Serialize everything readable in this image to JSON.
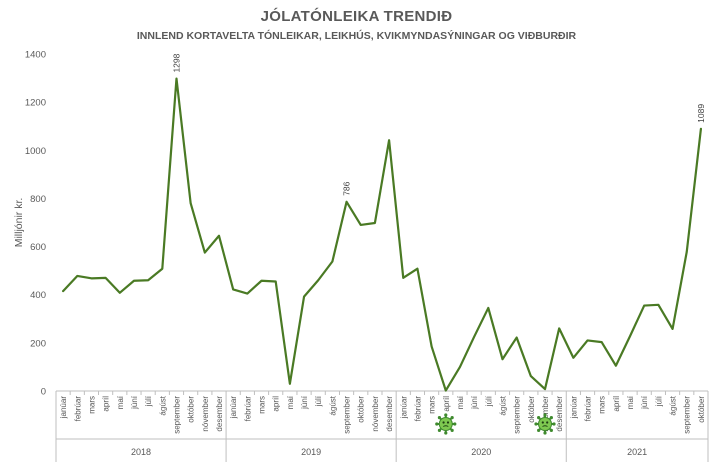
{
  "chart_data": {
    "type": "line",
    "title": "JÓLATÓNLEIKA TRENDIÐ",
    "subtitle": "INNLEND KORTAVELTA TÓNLEIKAR, LEIKHÚS, KVIKMYNDASÝNINGAR OG VIÐBURÐIR",
    "ylabel": "Milljónir kr.",
    "ylim": [
      0,
      1400
    ],
    "yticks": [
      0,
      200,
      400,
      600,
      800,
      1000,
      1200,
      1400
    ],
    "grid": false,
    "line_color": "#4a7a24",
    "groups": [
      {
        "year": "2018",
        "months": [
          "janúar",
          "febrúar",
          "mars",
          "apríl",
          "maí",
          "júní",
          "júlí",
          "ágúst",
          "september",
          "október",
          "nóvember",
          "desember"
        ]
      },
      {
        "year": "2019",
        "months": [
          "janúar",
          "febrúar",
          "mars",
          "apríl",
          "maí",
          "júní",
          "júlí",
          "ágúst",
          "september",
          "október",
          "nóvember",
          "desember"
        ]
      },
      {
        "year": "2020",
        "months": [
          "janúar",
          "febrúar",
          "mars",
          "apríl",
          "maí",
          "júní",
          "júlí",
          "ágúst",
          "september",
          "október",
          "nóvember",
          "desember"
        ]
      },
      {
        "year": "2021",
        "months": [
          "janúar",
          "febrúar",
          "mars",
          "apríl",
          "maí",
          "júní",
          "júlí",
          "ágúst",
          "september",
          "október"
        ]
      }
    ],
    "values": [
      415,
      478,
      468,
      470,
      408,
      458,
      460,
      508,
      1298,
      780,
      575,
      645,
      422,
      405,
      458,
      455,
      30,
      392,
      460,
      538,
      786,
      690,
      698,
      1042,
      470,
      508,
      185,
      2,
      100,
      225,
      345,
      132,
      222,
      62,
      8,
      260,
      138,
      210,
      203,
      105,
      228,
      355,
      358,
      258,
      578,
      1089
    ],
    "data_labels": [
      {
        "index": 8,
        "text": "1298"
      },
      {
        "index": 20,
        "text": "786"
      },
      {
        "index": 45,
        "text": "1089"
      }
    ],
    "icons": [
      {
        "index": 27,
        "name": "virus-icon"
      },
      {
        "index": 34,
        "name": "virus-icon"
      }
    ]
  }
}
